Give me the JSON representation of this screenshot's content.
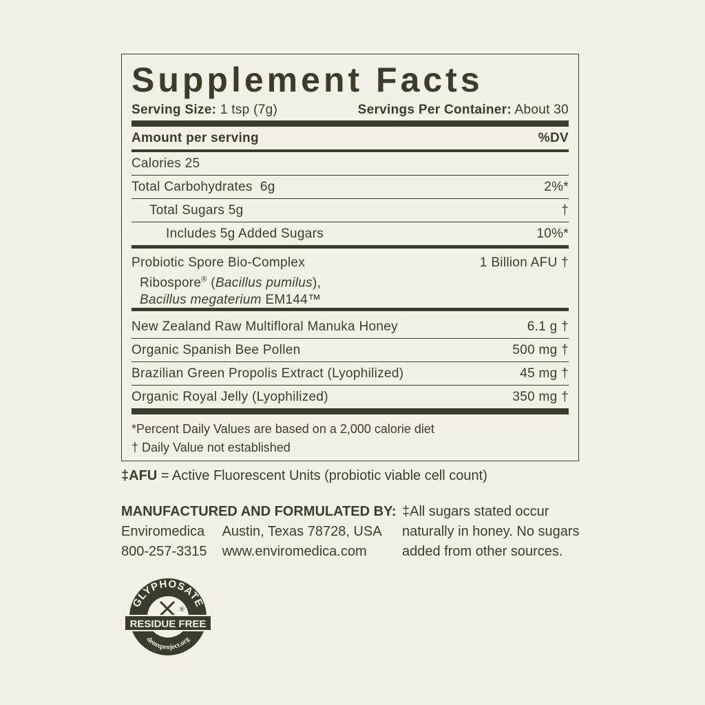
{
  "title": "Supplement Facts",
  "serving": {
    "size_label": "Serving Size:",
    "size_value": "1 tsp (7g)",
    "per_container_label": "Servings Per Container:",
    "per_container_value": "About 30"
  },
  "header": {
    "amount": "Amount per serving",
    "dv": "%DV"
  },
  "nutrients": [
    {
      "name": "Calories 25",
      "dv": ""
    },
    {
      "name": "Total Carbohydrates  6g",
      "dv": "2%*"
    },
    {
      "name": "Total Sugars 5g",
      "dv": "†"
    },
    {
      "name": "Includes 5g Added Sugars",
      "dv": "10%*"
    }
  ],
  "probiotic": {
    "name": "Probiotic Spore Bio-Complex",
    "line2_a": "Ribospore",
    "reg": "®",
    "line2_b": " (",
    "line2_italic": "Bacillus pumilus",
    "line2_c": "),",
    "line3_italic": "Bacillus megaterium",
    "line3_b": " EM144™",
    "amount": "1 Billion AFU †"
  },
  "ingredients": [
    {
      "name": "New Zealand Raw Multifloral Manuka Honey",
      "amount": "6.1 g †"
    },
    {
      "name": "Organic Spanish Bee Pollen",
      "amount": "500 mg †"
    },
    {
      "name": "Brazilian Green Propolis Extract (Lyophilized)",
      "amount": "45 mg †"
    },
    {
      "name": "Organic Royal Jelly (Lyophilized)",
      "amount": "350 mg †"
    }
  ],
  "footnotes": [
    "*Percent Daily Values are based on a 2,000 calorie diet",
    "† Daily Value not established"
  ],
  "afu_note": {
    "label": "‡AFU",
    "text": " = Active Fluorescent Units (probiotic viable cell count)"
  },
  "manufacturer": {
    "heading": "MANUFACTURED AND FORMULATED BY:",
    "name": "Enviromedica",
    "phone": "800-257-3315",
    "address": "Austin, Texas 78728, USA",
    "website": "www.enviromedica.com"
  },
  "sugar_note": [
    "‡All sugars stated occur",
    "naturally in honey. No sugars",
    "added from other sources."
  ],
  "logo": {
    "top": "GLYPHOSATE",
    "band": "RESIDUE FREE",
    "bottom": "detoxproject.org"
  },
  "colors": {
    "background": "#f3f0e6",
    "ink": "#3b3d2c"
  }
}
